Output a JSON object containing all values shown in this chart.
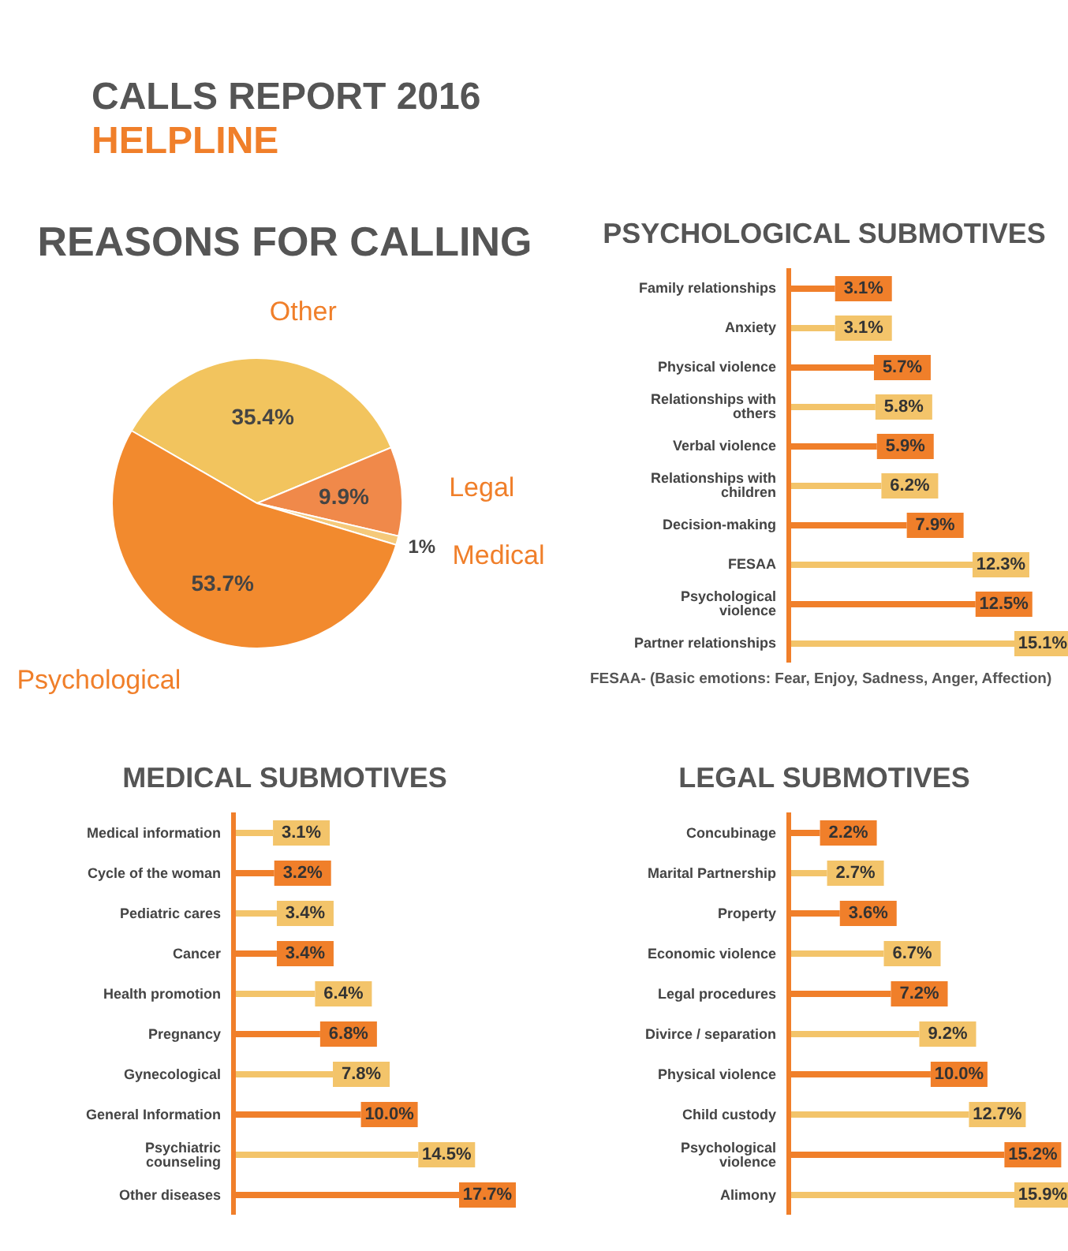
{
  "chart_data": [
    {
      "type": "other",
      "title": "CALLS REPORT 2016",
      "subtitle": "HELPLINE"
    },
    {
      "type": "pie",
      "title": "REASONS FOR CALLING",
      "categories": [
        "Other",
        "Legal",
        "Medical",
        "Psychological"
      ],
      "values": [
        35.4,
        9.9,
        1,
        53.7
      ],
      "colors": [
        "#f2c45e",
        "#f0894a",
        "#f5c97a",
        "#f28a2e"
      ],
      "value_labels": [
        "35.4%",
        "9.9%",
        "1%",
        "53.7%"
      ]
    },
    {
      "type": "bar",
      "orientation": "horizontal",
      "title": "PSYCHOLOGICAL SUBMOTIVES",
      "categories": [
        "Family relationships",
        "Anxiety",
        "Physical violence",
        "Relationships with others",
        "Verbal violence",
        "Relationships with children",
        "Decision-making",
        "FESAA",
        "Psychological violence",
        "Partner relationships"
      ],
      "values": [
        3.1,
        3.1,
        5.7,
        5.8,
        5.9,
        6.2,
        7.9,
        12.3,
        12.5,
        15.1
      ],
      "colors": [
        "#f07f2a",
        "#f3c46a",
        "#f07f2a",
        "#f3c46a",
        "#f07f2a",
        "#f3c46a",
        "#f07f2a",
        "#f3c46a",
        "#f07f2a",
        "#f3c46a"
      ],
      "value_labels": [
        "3.1%",
        "3.1%",
        "5.7%",
        "5.8%",
        "5.9%",
        "6.2%",
        "7.9%",
        "12.3%",
        "12.5%",
        "15.1%"
      ],
      "annotations": [
        "FESAA- (Basic emotions: Fear, Enjoy, Sadness, Anger, Affection)"
      ]
    },
    {
      "type": "bar",
      "orientation": "horizontal",
      "title": "MEDICAL SUBMOTIVES",
      "categories": [
        "Medical information",
        "Cycle of the woman",
        "Pediatric cares",
        "Cancer",
        "Health promotion",
        "Pregnancy",
        "Gynecological",
        "General Information",
        "Psychiatric counseling",
        "Other diseases"
      ],
      "values": [
        3.1,
        3.2,
        3.4,
        3.4,
        6.4,
        6.8,
        7.8,
        10.0,
        14.5,
        17.7
      ],
      "colors": [
        "#f3c46a",
        "#f07f2a",
        "#f3c46a",
        "#f07f2a",
        "#f3c46a",
        "#f07f2a",
        "#f3c46a",
        "#f07f2a",
        "#f3c46a",
        "#f07f2a"
      ],
      "value_labels": [
        "3.1%",
        "3.2%",
        "3.4%",
        "3.4%",
        "6.4%",
        "6.8%",
        "7.8%",
        "10.0%",
        "14.5%",
        "17.7%"
      ]
    },
    {
      "type": "bar",
      "orientation": "horizontal",
      "title": "LEGAL SUBMOTIVES",
      "categories": [
        "Concubinage",
        "Marital Partnership",
        "Property",
        "Economic violence",
        "Legal procedures",
        "Divirce / separation",
        "Physical violence",
        "Child custody",
        "Psychological violence",
        "Alimony"
      ],
      "values": [
        2.2,
        2.7,
        3.6,
        6.7,
        7.2,
        9.2,
        10.0,
        12.7,
        15.2,
        15.9
      ],
      "colors": [
        "#f07f2a",
        "#f3c46a",
        "#f07f2a",
        "#f3c46a",
        "#f07f2a",
        "#f3c46a",
        "#f07f2a",
        "#f3c46a",
        "#f07f2a",
        "#f3c46a"
      ],
      "value_labels": [
        "2.2%",
        "2.7%",
        "3.6%",
        "6.7%",
        "7.2%",
        "9.2%",
        "10.0%",
        "12.7%",
        "15.2%",
        "15.9%"
      ]
    }
  ]
}
